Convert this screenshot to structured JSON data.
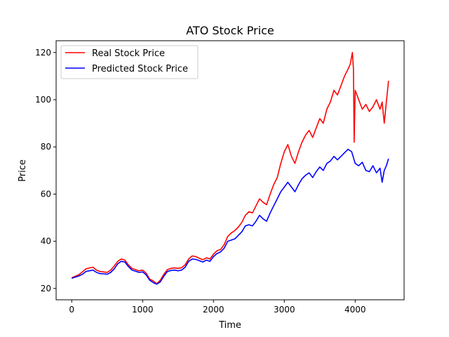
{
  "chart_data": {
    "type": "line",
    "title": "ATO Stock Price",
    "xlabel": "Time",
    "ylabel": "Price",
    "xlim": [
      -220,
      4690
    ],
    "ylim": [
      15.2,
      125.0
    ],
    "xticks": [
      0,
      1000,
      2000,
      3000,
      4000
    ],
    "yticks": [
      20,
      40,
      60,
      80,
      100,
      120
    ],
    "grid": false,
    "legend": {
      "position": "top-left"
    },
    "series": [
      {
        "name": "Real Stock Price",
        "color": "#ff0000",
        "x": [
          0,
          50,
          100,
          150,
          200,
          250,
          300,
          350,
          400,
          450,
          500,
          550,
          600,
          650,
          700,
          750,
          800,
          850,
          900,
          950,
          1000,
          1050,
          1100,
          1150,
          1200,
          1250,
          1300,
          1350,
          1400,
          1450,
          1500,
          1550,
          1600,
          1650,
          1700,
          1750,
          1800,
          1850,
          1900,
          1950,
          2000,
          2050,
          2100,
          2150,
          2200,
          2250,
          2300,
          2350,
          2400,
          2450,
          2500,
          2550,
          2600,
          2650,
          2700,
          2750,
          2800,
          2850,
          2900,
          2950,
          3000,
          3050,
          3100,
          3150,
          3200,
          3250,
          3300,
          3350,
          3400,
          3450,
          3500,
          3550,
          3600,
          3650,
          3700,
          3750,
          3800,
          3850,
          3900,
          3930,
          3960,
          3975,
          3985,
          4000,
          4050,
          4100,
          4150,
          4200,
          4250,
          4300,
          4350,
          4380,
          4410,
          4440,
          4470
        ],
        "values": [
          24.5,
          25.2,
          25.8,
          27.0,
          28.3,
          28.7,
          29.0,
          27.8,
          27.2,
          27.0,
          26.8,
          27.8,
          29.5,
          31.5,
          32.5,
          32.0,
          30.0,
          28.5,
          28.0,
          27.5,
          27.8,
          26.5,
          24.0,
          23.2,
          22.0,
          23.5,
          26.0,
          28.0,
          28.5,
          28.7,
          28.5,
          28.8,
          30.0,
          32.5,
          33.8,
          33.5,
          32.8,
          32.2,
          33.0,
          32.5,
          34.5,
          36.0,
          36.5,
          38.5,
          42.0,
          43.5,
          44.5,
          46.0,
          48.0,
          51.0,
          52.5,
          52.0,
          55.0,
          58.0,
          56.5,
          55.5,
          60.0,
          64.0,
          67.0,
          73.0,
          78.0,
          81.0,
          76.0,
          73.0,
          78.0,
          82.0,
          85.0,
          87.0,
          84.0,
          88.0,
          92.0,
          90.0,
          96.0,
          99.0,
          104.0,
          102.0,
          106.0,
          110.0,
          113.0,
          115.0,
          120.0,
          113.0,
          82.0,
          104.0,
          100.0,
          96.0,
          98.0,
          95.0,
          97.0,
          100.0,
          96.0,
          99.0,
          90.0,
          99.0,
          108.0
        ]
      },
      {
        "name": "Predicted Stock Price",
        "color": "#0000ff",
        "x": [
          0,
          50,
          100,
          150,
          200,
          250,
          300,
          350,
          400,
          450,
          500,
          550,
          600,
          650,
          700,
          750,
          800,
          850,
          900,
          950,
          1000,
          1050,
          1100,
          1150,
          1200,
          1250,
          1300,
          1350,
          1400,
          1450,
          1500,
          1550,
          1600,
          1650,
          1700,
          1750,
          1800,
          1850,
          1900,
          1950,
          2000,
          2050,
          2100,
          2150,
          2200,
          2250,
          2300,
          2350,
          2400,
          2450,
          2500,
          2550,
          2600,
          2650,
          2700,
          2750,
          2800,
          2850,
          2900,
          2950,
          3000,
          3050,
          3100,
          3150,
          3200,
          3250,
          3300,
          3350,
          3400,
          3450,
          3500,
          3550,
          3600,
          3650,
          3700,
          3750,
          3800,
          3850,
          3900,
          3950,
          4000,
          4050,
          4100,
          4150,
          4200,
          4250,
          4300,
          4350,
          4380,
          4410,
          4440,
          4470
        ],
        "values": [
          24.3,
          24.8,
          25.3,
          26.0,
          27.2,
          27.5,
          27.8,
          26.8,
          26.3,
          26.2,
          26.0,
          26.8,
          28.3,
          30.5,
          31.5,
          31.2,
          29.3,
          27.8,
          27.3,
          26.8,
          27.0,
          25.8,
          23.5,
          22.5,
          21.8,
          22.8,
          25.2,
          27.2,
          27.6,
          27.8,
          27.5,
          27.8,
          29.0,
          31.5,
          32.5,
          32.3,
          31.8,
          31.2,
          32.0,
          31.5,
          33.5,
          34.8,
          35.5,
          37.0,
          40.0,
          40.5,
          41.0,
          42.5,
          44.0,
          46.5,
          47.0,
          46.5,
          48.5,
          51.0,
          49.5,
          48.5,
          52.0,
          55.0,
          58.0,
          61.0,
          63.0,
          65.0,
          63.0,
          61.0,
          64.0,
          66.5,
          68.0,
          69.0,
          67.0,
          69.5,
          71.5,
          70.0,
          73.0,
          74.0,
          76.0,
          74.5,
          76.0,
          77.5,
          79.0,
          78.0,
          73.0,
          72.0,
          73.5,
          70.0,
          69.5,
          72.0,
          69.0,
          71.0,
          65.0,
          70.0,
          72.0,
          75.0
        ]
      }
    ]
  }
}
